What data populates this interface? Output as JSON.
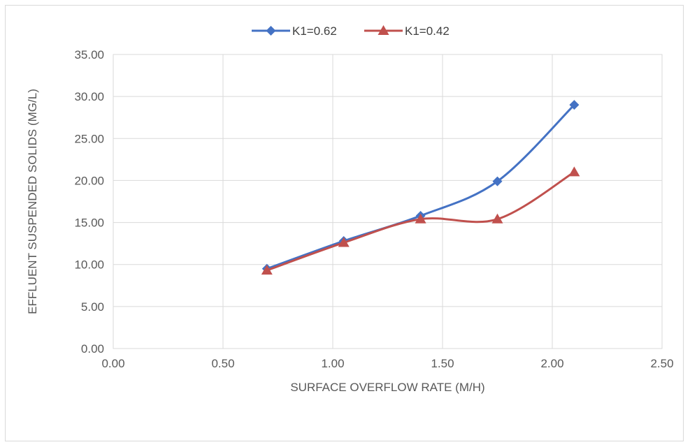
{
  "chart_data": {
    "type": "line",
    "title": "",
    "xlabel": "SURFACE OVERFLOW RATE (M/H)",
    "ylabel": "EFFLUENT SUSPENDED SOLIDS (MG/L)",
    "xlim": [
      0,
      2.5
    ],
    "ylim": [
      0,
      35
    ],
    "x_ticks": [
      "0.00",
      "0.50",
      "1.00",
      "1.50",
      "2.00",
      "2.50"
    ],
    "y_ticks": [
      "0.00",
      "5.00",
      "10.00",
      "15.00",
      "20.00",
      "25.00",
      "30.00",
      "35.00"
    ],
    "grid": true,
    "smooth": true,
    "legend_position": "top",
    "series": [
      {
        "name": "K1=0.62",
        "color": "#4472c4",
        "marker": "diamond",
        "x": [
          0.7,
          1.05,
          1.4,
          1.75,
          2.1
        ],
        "y": [
          9.5,
          12.8,
          15.8,
          19.9,
          29.0
        ]
      },
      {
        "name": "K1=0.42",
        "color": "#c0504d",
        "marker": "triangle",
        "x": [
          0.7,
          1.05,
          1.4,
          1.75,
          2.1
        ],
        "y": [
          9.3,
          12.6,
          15.4,
          15.4,
          21.0
        ]
      }
    ]
  }
}
